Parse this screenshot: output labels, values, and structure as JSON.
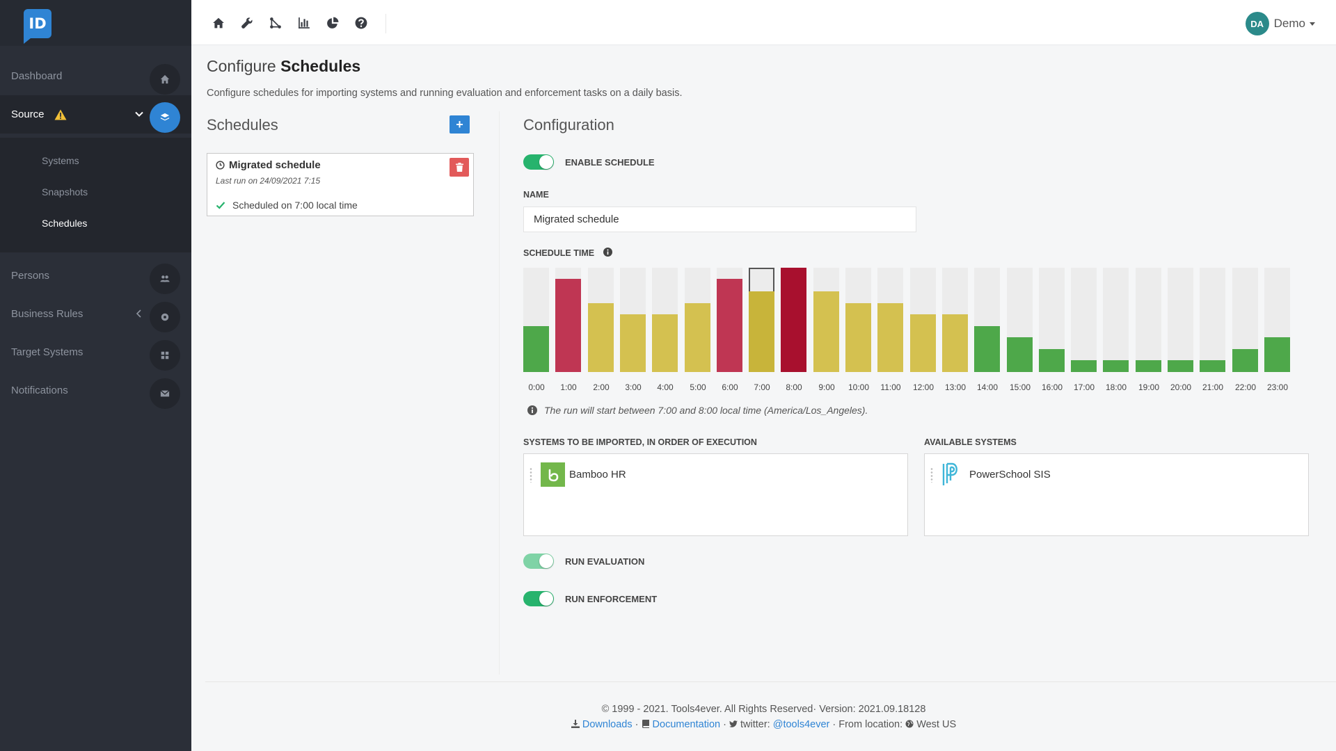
{
  "sidebar": {
    "logo_text": "ID",
    "items": [
      {
        "label": "Dashboard",
        "icon": "home-icon"
      },
      {
        "label": "Source",
        "icon": "layers-icon",
        "warning": true
      },
      {
        "label": "Persons",
        "icon": "users-icon"
      },
      {
        "label": "Business Rules",
        "icon": "cog-icon"
      },
      {
        "label": "Target Systems",
        "icon": "grid-icon"
      },
      {
        "label": "Notifications",
        "icon": "envelope-icon"
      }
    ],
    "subitems": [
      "Systems",
      "Snapshots",
      "Schedules"
    ]
  },
  "topbar": {
    "icons": [
      "home-icon",
      "wrench-icon",
      "flow-icon",
      "bar-chart-icon",
      "pie-chart-icon",
      "help-icon"
    ],
    "user_initials": "DA",
    "user_name": "Demo"
  },
  "page": {
    "title_light": "Configure",
    "title_bold": "Schedules",
    "description": "Configure schedules for importing systems and running evaluation and enforcement tasks on a daily basis."
  },
  "schedules": {
    "heading": "Schedules",
    "add_label": "+",
    "card": {
      "title": "Migrated schedule",
      "last_run": "Last run on 24/09/2021 7:15",
      "status": "Scheduled on 7:00 local time"
    }
  },
  "configuration": {
    "heading": "Configuration",
    "enable_label": "ENABLE SCHEDULE",
    "name_label": "NAME",
    "name_value": "Migrated schedule",
    "schedule_time_label": "SCHEDULE TIME",
    "chart_note": "The run will start between 7:00 and 8:00 local time (America/Los_Angeles).",
    "systems_label": "SYSTEMS TO BE IMPORTED, IN ORDER OF EXECUTION",
    "available_label": "AVAILABLE SYSTEMS",
    "selected_systems": [
      "Bamboo HR"
    ],
    "available_systems": [
      "PowerSchool SIS"
    ],
    "run_evaluation_label": "RUN EVALUATION",
    "run_enforcement_label": "RUN ENFORCEMENT"
  },
  "colors": {
    "accent": "#2f84d4",
    "low": "#4ea84a",
    "medium": "#d4c150",
    "high": "#bf3653",
    "peak": "#a8102e",
    "selected_medium": "#c8b43a"
  },
  "chart_data": {
    "type": "bar",
    "categories": [
      "0:00",
      "1:00",
      "2:00",
      "3:00",
      "4:00",
      "5:00",
      "6:00",
      "7:00",
      "8:00",
      "9:00",
      "10:00",
      "11:00",
      "12:00",
      "13:00",
      "14:00",
      "15:00",
      "16:00",
      "17:00",
      "18:00",
      "19:00",
      "20:00",
      "21:00",
      "22:00",
      "23:00"
    ],
    "values": [
      44,
      89,
      66,
      55,
      55,
      66,
      89,
      77,
      100,
      77,
      66,
      66,
      55,
      55,
      44,
      33,
      22,
      11,
      11,
      11,
      11,
      11,
      22,
      33
    ],
    "levels": [
      "low",
      "high",
      "medium",
      "medium",
      "medium",
      "medium",
      "high",
      "medium",
      "peak",
      "medium",
      "medium",
      "medium",
      "medium",
      "medium",
      "low",
      "low",
      "low",
      "low",
      "low",
      "low",
      "low",
      "low",
      "low",
      "low"
    ],
    "selected_index": 7,
    "ylim": [
      0,
      100
    ]
  },
  "footer": {
    "line1": "© 1999 - 2021. Tools4ever. All Rights Reserved· Version: 2021.09.18128",
    "downloads": "Downloads",
    "documentation": "Documentation",
    "twitter_prefix": "twitter:",
    "twitter_handle": "@tools4ever",
    "location_prefix": "From location:",
    "location": "West US"
  }
}
